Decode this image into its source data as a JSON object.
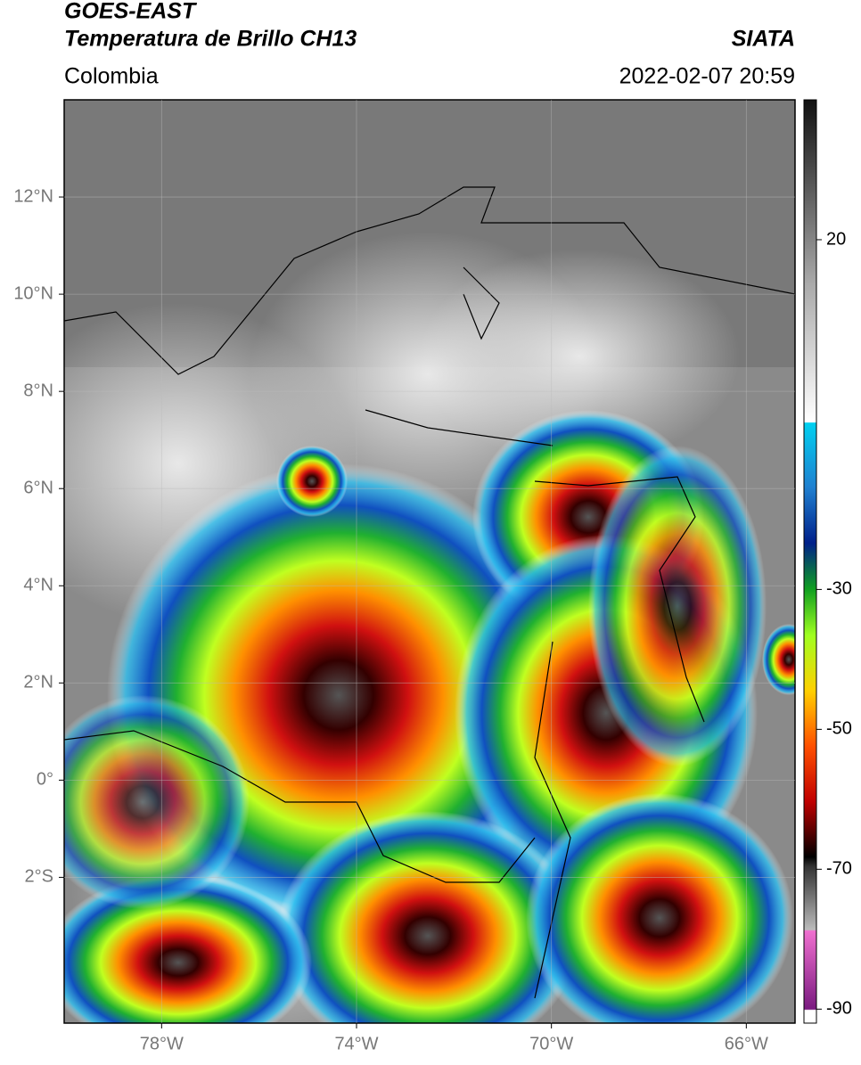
{
  "header": {
    "title": "GOES-EAST",
    "subtitle": "Temperatura de Brillo CH13",
    "region": "Colombia",
    "source": "SIATA",
    "datetime": "2022-02-07 20:59"
  },
  "map": {
    "xlim": [
      -80,
      -65
    ],
    "ylim": [
      -5,
      14
    ],
    "xticks": [
      {
        "value": -78,
        "label": "78°W"
      },
      {
        "value": -74,
        "label": "74°W"
      },
      {
        "value": -70,
        "label": "70°W"
      },
      {
        "value": -66,
        "label": "66°W"
      }
    ],
    "yticks": [
      {
        "value": 12,
        "label": "12°N"
      },
      {
        "value": 10,
        "label": "10°N"
      },
      {
        "value": 8,
        "label": "8°N"
      },
      {
        "value": 6,
        "label": "6°N"
      },
      {
        "value": 4,
        "label": "4°N"
      },
      {
        "value": 2,
        "label": "2°N"
      },
      {
        "value": 0,
        "label": "0°"
      },
      {
        "value": -2,
        "label": "2°S"
      }
    ],
    "grid": true
  },
  "colorbar": {
    "lim": [
      -92,
      40
    ],
    "ticks": [
      20,
      -30,
      -50,
      -70,
      -90
    ]
  }
}
